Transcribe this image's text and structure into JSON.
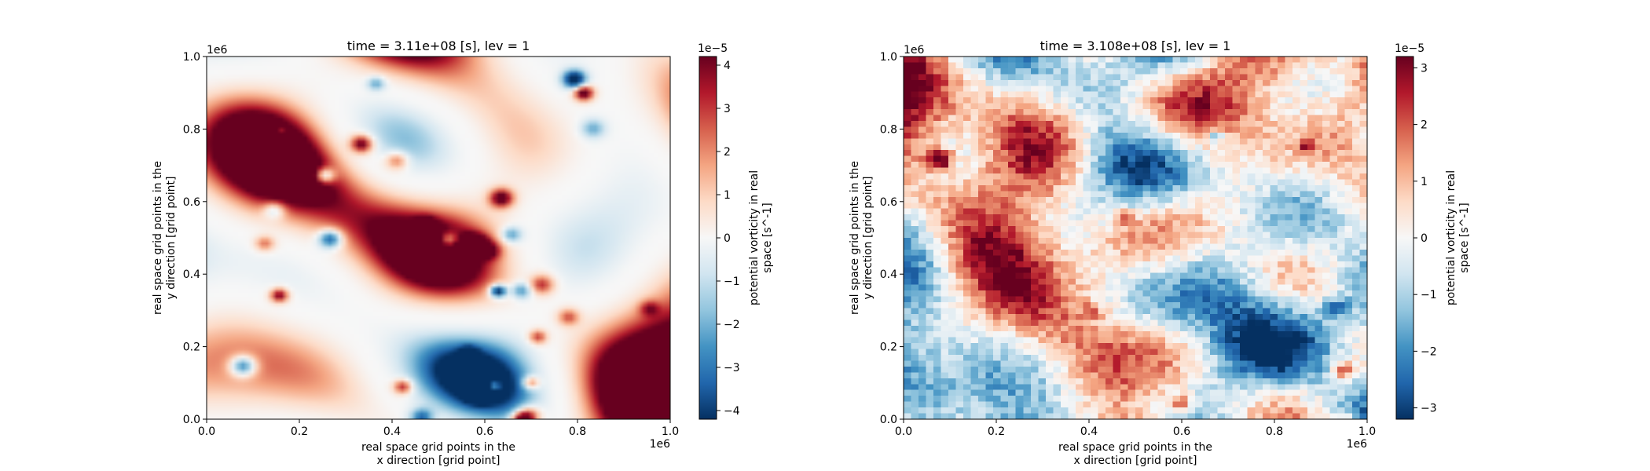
{
  "figure": {
    "panels": [
      {
        "title": "time = 3.11e+08 [s], lev = 1",
        "offset_x_text": "1e6",
        "offset_y_text": "1e6",
        "xlabel_lines": [
          "real space grid points in the",
          "x direction [grid point]"
        ],
        "ylabel_lines": [
          "real space grid points in the",
          "y direction [grid point]"
        ],
        "colorbar_label_lines": [
          "potential vorticity in real",
          "space [s^-1]"
        ],
        "colorbar_offset_text": "1e−5"
      },
      {
        "title": "time = 3.108e+08 [s], lev = 1",
        "offset_x_text": "1e6",
        "offset_y_text": "1e6",
        "xlabel_lines": [
          "real space grid points in the",
          "x direction [grid point]"
        ],
        "ylabel_lines": [
          "real space grid points in the",
          "y direction [grid point]"
        ],
        "colorbar_label_lines": [
          "potential vorticity in real",
          "space [s^-1]"
        ],
        "colorbar_offset_text": "1e−5"
      }
    ]
  },
  "colors": {
    "colormap": "RdBu_r",
    "stops": [
      "#053061",
      "#2166ac",
      "#4393c3",
      "#92c5de",
      "#d1e5f0",
      "#f7f7f7",
      "#fddbc7",
      "#f4a582",
      "#d6604d",
      "#b2182b",
      "#67001f"
    ]
  },
  "chart_data": [
    {
      "type": "heatmap",
      "title": "time = 3.11e+08 [s], lev = 1",
      "xlabel": "real space grid points in the x direction [grid point]",
      "ylabel": "real space grid points in the y direction [grid point]",
      "x_tick_labels": [
        "0.0",
        "0.2",
        "0.4",
        "0.6",
        "0.8",
        "1.0"
      ],
      "y_tick_labels": [
        "0.0",
        "0.2",
        "0.4",
        "0.6",
        "0.8",
        "1.0"
      ],
      "axis_scale_text": "1e6",
      "xlim": [
        0,
        1000000
      ],
      "ylim": [
        0,
        1000000
      ],
      "resolution": "high (smooth vortex field)",
      "colorbar": {
        "label": "potential vorticity in real space [s^-1]",
        "scale_text": "1e−5",
        "range": [
          -4.2e-05,
          4.2e-05
        ],
        "ticks": [
          -4,
          -3,
          -2,
          -1,
          0,
          1,
          2,
          3,
          4
        ],
        "tick_labels": [
          "−4",
          "−3",
          "−2",
          "−1",
          "0",
          "1",
          "2",
          "3",
          "4"
        ]
      }
    },
    {
      "type": "heatmap",
      "title": "time = 3.108e+08 [s], lev = 1",
      "xlabel": "real space grid points in the x direction [grid point]",
      "ylabel": "real space grid points in the y direction [grid point]",
      "x_tick_labels": [
        "0.0",
        "0.2",
        "0.4",
        "0.6",
        "0.8",
        "1.0"
      ],
      "y_tick_labels": [
        "0.0",
        "0.2",
        "0.4",
        "0.6",
        "0.8",
        "1.0"
      ],
      "axis_scale_text": "1e6",
      "xlim": [
        0,
        1000000
      ],
      "ylim": [
        0,
        1000000
      ],
      "resolution": "coarse (pixelated field)",
      "colorbar": {
        "label": "potential vorticity in real space [s^-1]",
        "scale_text": "1e−5",
        "range": [
          -3.2e-05,
          3.2e-05
        ],
        "ticks": [
          -3,
          -2,
          -1,
          0,
          1,
          2,
          3
        ],
        "tick_labels": [
          "−3",
          "−2",
          "−1",
          "0",
          "1",
          "2",
          "3"
        ]
      }
    }
  ]
}
